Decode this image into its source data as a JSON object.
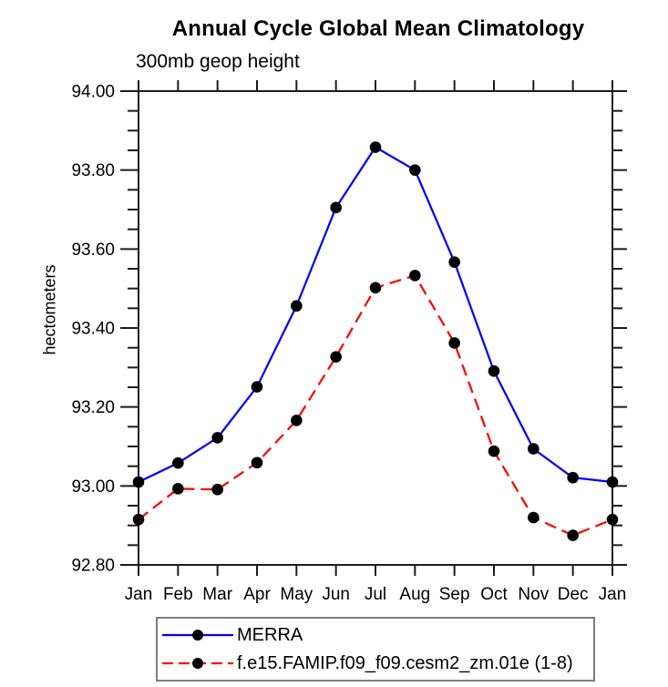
{
  "chart_data": {
    "type": "line",
    "title": "Annual Cycle Global Mean Climatology",
    "subtitle": "300mb geop height",
    "ylabel": "hectometers",
    "xlabel": "",
    "categories": [
      "Jan",
      "Feb",
      "Mar",
      "Apr",
      "May",
      "Jun",
      "Jul",
      "Aug",
      "Sep",
      "Oct",
      "Nov",
      "Dec",
      "Jan"
    ],
    "ylim": [
      92.8,
      94.0
    ],
    "y_major_tick_step": 0.2,
    "y_minor_tick_step": 0.05,
    "y_tick_labels": [
      "92.80",
      "93.00",
      "93.20",
      "93.40",
      "93.60",
      "93.80",
      "94.00"
    ],
    "grid": false,
    "legend_position": "bottom",
    "axis_color": "#1c1c1c",
    "text_color": "#000000",
    "series": [
      {
        "name": "MERRA",
        "line_color": "#0000ff",
        "line_style": "solid",
        "marker": "filled-circle",
        "marker_color": "#000000",
        "values": [
          93.01,
          93.058,
          93.122,
          93.251,
          93.456,
          93.705,
          93.858,
          93.8,
          93.567,
          93.291,
          93.094,
          93.021,
          93.01
        ]
      },
      {
        "name": "f.e15.FAMIP.f09_f09.cesm2_zm.01e (1-8)",
        "line_color": "#ff0000",
        "line_style": "dashed",
        "marker": "filled-circle",
        "marker_color": "#000000",
        "values": [
          92.915,
          92.993,
          92.991,
          93.059,
          93.166,
          93.327,
          93.502,
          93.533,
          93.362,
          93.088,
          92.92,
          92.875,
          92.915
        ]
      }
    ]
  }
}
